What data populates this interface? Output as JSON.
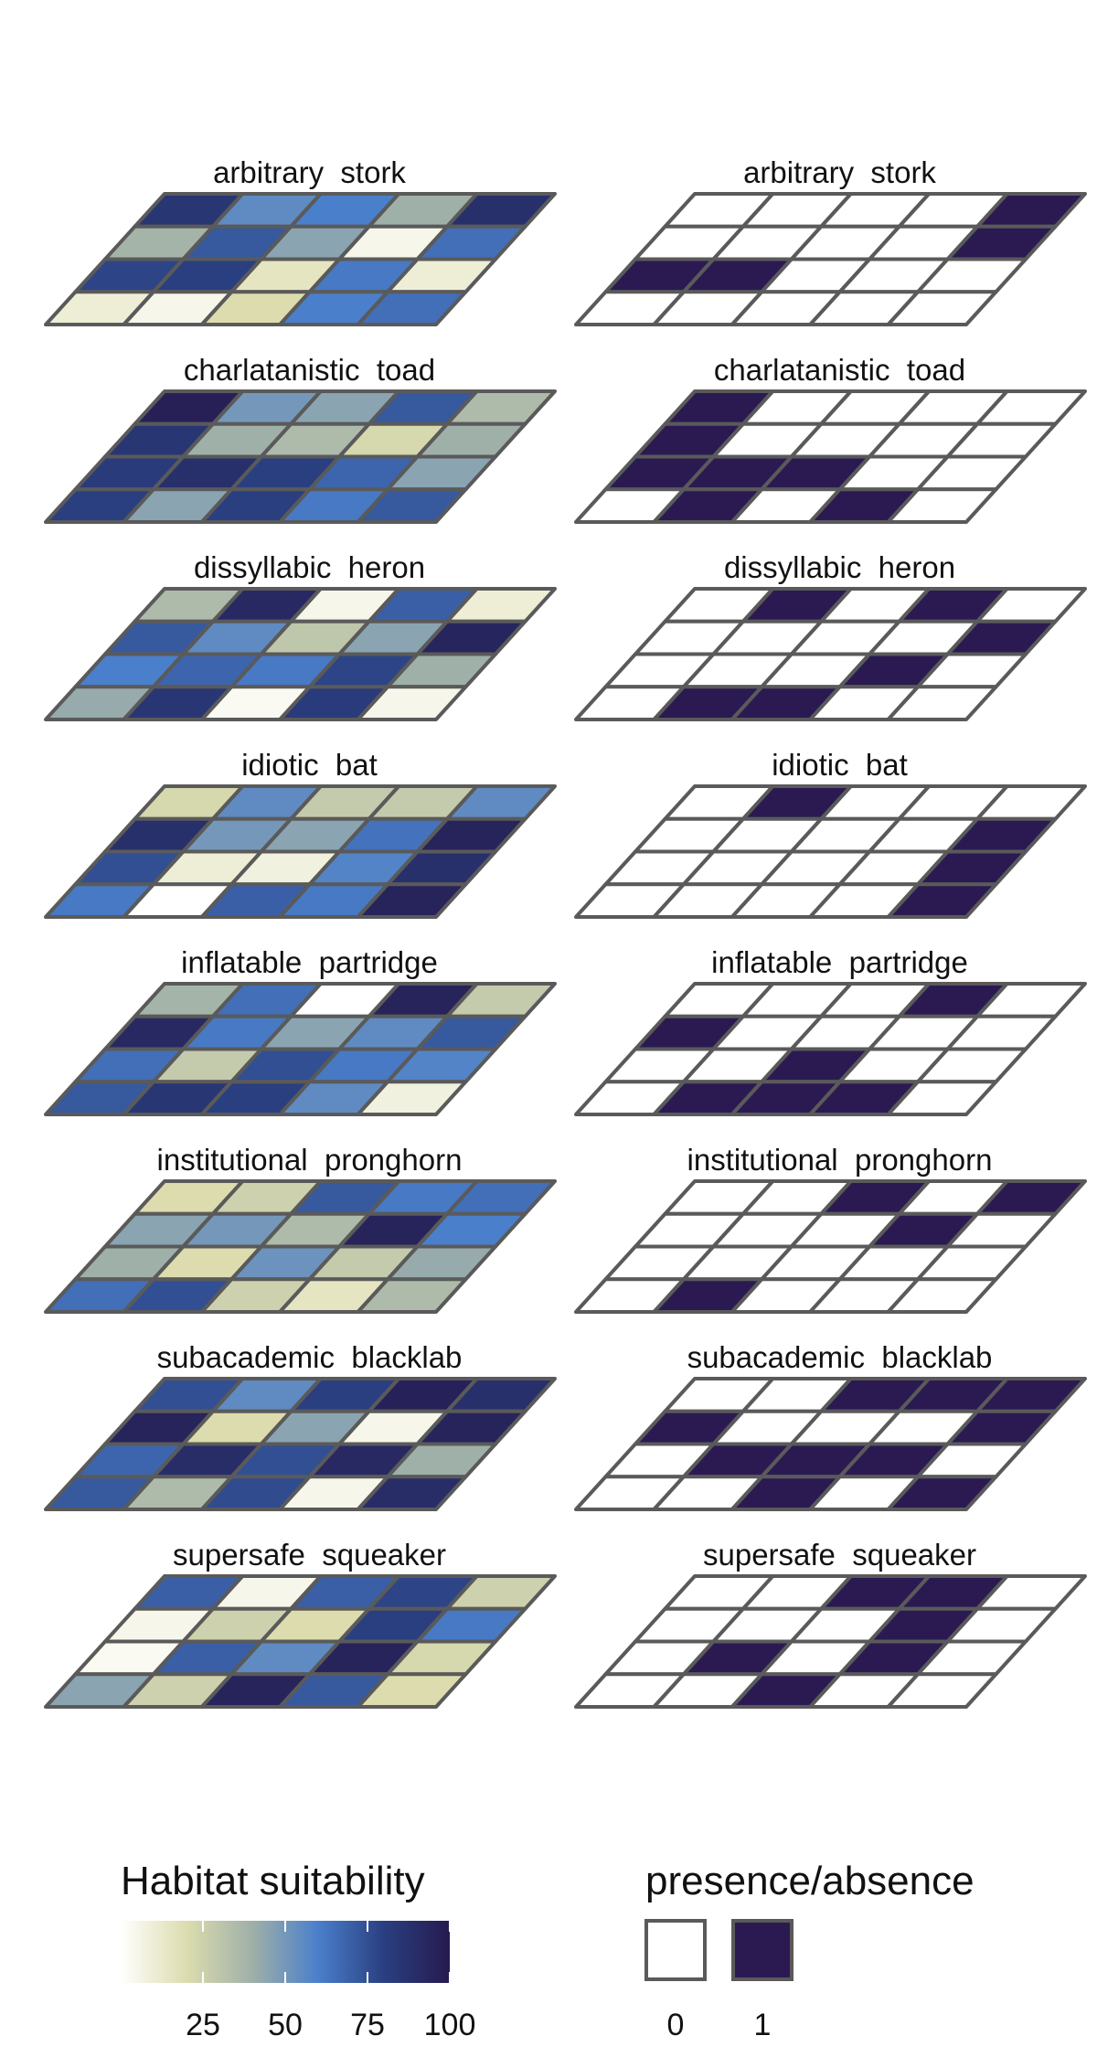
{
  "chart_data": {
    "type": "heatmap",
    "grid": {
      "rows": 4,
      "cols": 5
    },
    "palette": [
      "#ffffff",
      "#dcdcae",
      "#9fb0a8",
      "#4a7fcb",
      "#2a3f80",
      "#261a4f"
    ],
    "cell_border_color": "#5a5a5a",
    "presence_color": "#2b1a52",
    "absence_color": "#ffffff",
    "species": [
      {
        "name": "arbitrary  stork",
        "suitability": [
          [
            85,
            55,
            60,
            40,
            88
          ],
          [
            38,
            72,
            45,
            5,
            65
          ],
          [
            78,
            80,
            15,
            62,
            10
          ],
          [
            10,
            5,
            20,
            60,
            65
          ]
        ],
        "presence": [
          [
            0,
            0,
            0,
            0,
            1
          ],
          [
            0,
            0,
            0,
            0,
            1
          ],
          [
            1,
            1,
            0,
            0,
            0
          ],
          [
            0,
            0,
            0,
            0,
            0
          ]
        ]
      },
      {
        "name": "charlatanistic  toad",
        "suitability": [
          [
            97,
            50,
            45,
            72,
            35
          ],
          [
            85,
            40,
            35,
            22,
            40
          ],
          [
            82,
            88,
            80,
            68,
            45
          ],
          [
            80,
            45,
            80,
            62,
            72
          ]
        ],
        "presence": [
          [
            1,
            0,
            0,
            0,
            0
          ],
          [
            1,
            0,
            0,
            0,
            0
          ],
          [
            1,
            1,
            1,
            0,
            0
          ],
          [
            0,
            1,
            0,
            1,
            0
          ]
        ]
      },
      {
        "name": "dissyllabic  heron",
        "suitability": [
          [
            35,
            92,
            5,
            70,
            10
          ],
          [
            72,
            55,
            30,
            45,
            94
          ],
          [
            60,
            68,
            62,
            78,
            40
          ],
          [
            42,
            85,
            3,
            82,
            5
          ]
        ],
        "presence": [
          [
            0,
            1,
            0,
            1,
            0
          ],
          [
            0,
            0,
            0,
            0,
            1
          ],
          [
            0,
            0,
            0,
            1,
            0
          ],
          [
            0,
            1,
            1,
            0,
            0
          ]
        ]
      },
      {
        "name": "idiotic  bat",
        "suitability": [
          [
            22,
            55,
            28,
            28,
            55
          ],
          [
            88,
            50,
            45,
            64,
            95
          ],
          [
            75,
            10,
            8,
            58,
            88
          ],
          [
            62,
            0,
            70,
            62,
            95
          ]
        ],
        "presence": [
          [
            0,
            1,
            0,
            0,
            0
          ],
          [
            0,
            0,
            0,
            0,
            1
          ],
          [
            0,
            0,
            0,
            0,
            1
          ],
          [
            0,
            0,
            0,
            0,
            1
          ]
        ]
      },
      {
        "name": "inflatable  partridge",
        "suitability": [
          [
            38,
            65,
            0,
            95,
            28
          ],
          [
            92,
            62,
            45,
            55,
            72
          ],
          [
            65,
            28,
            75,
            62,
            58
          ],
          [
            72,
            85,
            80,
            55,
            8
          ]
        ],
        "presence": [
          [
            0,
            0,
            0,
            1,
            0
          ],
          [
            1,
            0,
            0,
            0,
            0
          ],
          [
            0,
            0,
            1,
            0,
            0
          ],
          [
            0,
            1,
            1,
            1,
            0
          ]
        ]
      },
      {
        "name": "institutional  pronghorn",
        "suitability": [
          [
            20,
            25,
            72,
            62,
            65
          ],
          [
            45,
            50,
            35,
            95,
            60
          ],
          [
            40,
            20,
            52,
            28,
            42
          ],
          [
            65,
            75,
            25,
            15,
            35
          ]
        ],
        "presence": [
          [
            0,
            0,
            1,
            0,
            1
          ],
          [
            0,
            0,
            0,
            1,
            0
          ],
          [
            0,
            0,
            0,
            0,
            0
          ],
          [
            0,
            1,
            0,
            0,
            0
          ]
        ]
      },
      {
        "name": "subacademic  blacklab",
        "suitability": [
          [
            75,
            55,
            80,
            96,
            88
          ],
          [
            95,
            20,
            45,
            5,
            95
          ],
          [
            68,
            90,
            75,
            92,
            40
          ],
          [
            72,
            35,
            76,
            5,
            90
          ]
        ],
        "presence": [
          [
            0,
            0,
            1,
            1,
            1
          ],
          [
            1,
            0,
            0,
            0,
            1
          ],
          [
            0,
            1,
            1,
            1,
            0
          ],
          [
            0,
            0,
            1,
            0,
            1
          ]
        ]
      },
      {
        "name": "supersafe  squeaker",
        "suitability": [
          [
            70,
            5,
            70,
            78,
            25
          ],
          [
            5,
            25,
            20,
            80,
            62
          ],
          [
            3,
            70,
            55,
            95,
            22
          ],
          [
            45,
            25,
            95,
            72,
            20
          ]
        ],
        "presence": [
          [
            0,
            0,
            1,
            1,
            0
          ],
          [
            0,
            0,
            0,
            1,
            0
          ],
          [
            0,
            1,
            0,
            1,
            0
          ],
          [
            0,
            0,
            1,
            0,
            0
          ]
        ]
      }
    ],
    "legend_suitability": {
      "title": "Habitat suitability",
      "range": [
        0,
        100
      ],
      "ticks": [
        "25",
        "50",
        "75",
        "100"
      ]
    },
    "legend_presence": {
      "title": "presence/absence",
      "labels": [
        "0",
        "1"
      ]
    }
  }
}
